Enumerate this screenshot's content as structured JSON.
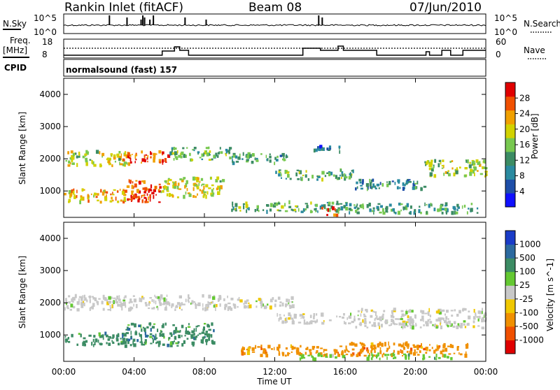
{
  "header": {
    "station": "Rankin Inlet (fitACF)",
    "beam": "Beam 08",
    "date": "07/Jun/2010"
  },
  "noise_panel": {
    "left_label": "N.Sky",
    "right_label": "N.Search",
    "left_ticks": [
      "10^5",
      "10^0"
    ],
    "right_ticks": [
      "10^5",
      "10^0"
    ]
  },
  "freq_panel": {
    "left_label_line1": "Freq.",
    "left_label_line2": "[MHz]",
    "left_ticks": [
      "18",
      "8"
    ],
    "right_label": "Nave",
    "right_ticks": [
      "60",
      "0"
    ]
  },
  "cpid": {
    "label": "CPID",
    "value": "normalsound (fast) 157"
  },
  "colors": {
    "power": [
      "#1010ff",
      "#1e4ea8",
      "#2a8aa0",
      "#3c8c64",
      "#78c850",
      "#d2d200",
      "#f0a000",
      "#f05000",
      "#e00000"
    ],
    "velocity": [
      "#1a3cc8",
      "#2c6aa0",
      "#3c8c64",
      "#64c832",
      "#c8c8c8",
      "#f0c800",
      "#f09000",
      "#f05000",
      "#e00000"
    ]
  },
  "chart_data": [
    {
      "type": "heatmap",
      "panel": "power",
      "ylabel": "Slant Range [km]",
      "yticks": [
        "4000",
        "3000",
        "2000",
        "1000"
      ],
      "ylim": [
        180,
        4500
      ],
      "colorbar_label": "Power [dB]",
      "colorbar_ticks": [
        "28",
        "24",
        "20",
        "16",
        "12",
        "8",
        "4"
      ],
      "colorbar_range": [
        0,
        32
      ],
      "scatter_bands": [
        {
          "t_start": 0.0,
          "t_end": 3.8,
          "range_center": 2000,
          "range_halfwidth": 220,
          "level": 18
        },
        {
          "t_start": 3.3,
          "t_end": 6.0,
          "range_center": 2050,
          "range_halfwidth": 180,
          "level": 27
        },
        {
          "t_start": 6.0,
          "t_end": 9.5,
          "range_center": 2150,
          "range_halfwidth": 200,
          "level": 14
        },
        {
          "t_start": 9.5,
          "t_end": 13.0,
          "range_center": 2000,
          "range_halfwidth": 150,
          "level": 12
        },
        {
          "t_start": 12.0,
          "t_end": 16.5,
          "range_center": 1500,
          "range_halfwidth": 150,
          "level": 14
        },
        {
          "t_start": 14.0,
          "t_end": 16.0,
          "range_center": 2300,
          "range_halfwidth": 100,
          "level": 8
        },
        {
          "t_start": 16.5,
          "t_end": 20.5,
          "range_center": 1200,
          "range_halfwidth": 150,
          "level": 10
        },
        {
          "t_start": 20.5,
          "t_end": 24.0,
          "range_center": 1700,
          "range_halfwidth": 250,
          "level": 17
        },
        {
          "t_start": 0.0,
          "t_end": 3.5,
          "range_center": 850,
          "range_halfwidth": 200,
          "level": 22
        },
        {
          "t_start": 3.5,
          "t_end": 5.5,
          "range_center": 1000,
          "range_halfwidth": 350,
          "level": 27
        },
        {
          "t_start": 5.5,
          "t_end": 9.0,
          "range_center": 1100,
          "range_halfwidth": 300,
          "level": 19
        },
        {
          "t_start": 9.5,
          "t_end": 16.0,
          "range_center": 500,
          "range_halfwidth": 150,
          "level": 14
        },
        {
          "t_start": 14.5,
          "t_end": 15.5,
          "range_center": 350,
          "range_halfwidth": 150,
          "level": 28
        },
        {
          "t_start": 16.0,
          "t_end": 23.5,
          "range_center": 450,
          "range_halfwidth": 150,
          "level": 13
        }
      ]
    },
    {
      "type": "heatmap",
      "panel": "velocity",
      "ylabel": "Slant Range [km]",
      "yticks": [
        "4000",
        "3000",
        "2000",
        "1000"
      ],
      "ylim": [
        180,
        4500
      ],
      "colorbar_label": "Velocity [m s^-1]",
      "colorbar_ticks": [
        "1000",
        "500",
        "100",
        "25",
        "-25",
        "-100",
        "-500",
        "-1000"
      ],
      "scatter_bands": [
        {
          "t_start": 0.0,
          "t_end": 9.5,
          "range_center": 2000,
          "range_halfwidth": 220,
          "class": 4
        },
        {
          "t_start": 9.5,
          "t_end": 13.0,
          "range_center": 2000,
          "range_halfwidth": 150,
          "class": 4
        },
        {
          "t_start": 12.0,
          "t_end": 16.5,
          "range_center": 1500,
          "range_halfwidth": 150,
          "class": 4
        },
        {
          "t_start": 16.5,
          "t_end": 24.0,
          "range_center": 1500,
          "range_halfwidth": 300,
          "class": 4
        },
        {
          "t_start": 0.0,
          "t_end": 3.5,
          "range_center": 850,
          "range_halfwidth": 200,
          "class": 2
        },
        {
          "t_start": 3.5,
          "t_end": 8.5,
          "range_center": 1000,
          "range_halfwidth": 350,
          "class": 2
        },
        {
          "t_start": 10.0,
          "t_end": 16.0,
          "range_center": 500,
          "range_halfwidth": 150,
          "class": 6
        },
        {
          "t_start": 13.0,
          "t_end": 16.0,
          "range_center": 300,
          "range_halfwidth": 100,
          "class": 3
        },
        {
          "t_start": 16.0,
          "t_end": 23.0,
          "range_center": 550,
          "range_halfwidth": 200,
          "class": 6
        },
        {
          "t_start": 17.0,
          "t_end": 22.0,
          "range_center": 300,
          "range_halfwidth": 100,
          "class": 3
        }
      ]
    }
  ],
  "time_axis": {
    "label": "Time UT",
    "ticks": [
      "00:00",
      "04:00",
      "08:00",
      "12:00",
      "16:00",
      "20:00",
      "00:00"
    ]
  }
}
